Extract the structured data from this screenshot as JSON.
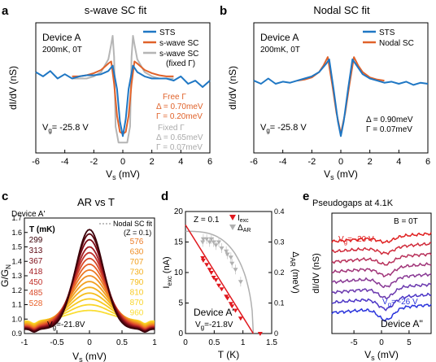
{
  "chart_data": [
    {
      "panel": "a",
      "type": "line",
      "title": "s-wave SC fit",
      "xlabel": "V",
      "xlabel_sub": "s",
      "xlabel_unit": "(mV)",
      "ylabel": "dI/dV (nS)",
      "xlim": [
        -6,
        6
      ],
      "xticks": [
        "-6",
        "-4",
        "-2",
        "0",
        "2",
        "4",
        "6"
      ],
      "device": "Device A",
      "conditions": "200mK, 0T",
      "gate": "V",
      "gate_sub": "g",
      "gate_value": "= -25.8 V",
      "legend": [
        "STS",
        "s-wave SC",
        "s-wave SC",
        "(fixed Γ)"
      ],
      "annotations": {
        "free": [
          "Free Γ",
          "Δ = 0.70meV",
          "Γ = 0.20meV"
        ],
        "fixed": [
          "Fixed Γ",
          "Δ = 0.65meV",
          "Γ = 0.07meV"
        ]
      },
      "series": [
        {
          "name": "STS",
          "color": "#1f77c4",
          "x": [
            -6,
            -5.5,
            -5,
            -4.5,
            -4,
            -3.5,
            -3,
            -2.5,
            -2,
            -1.5,
            -1,
            -0.7,
            -0.4,
            -0.2,
            0,
            0.2,
            0.4,
            0.7,
            1,
            1.5,
            2,
            2.5,
            3,
            3.5,
            4,
            4.5,
            5,
            5.5,
            6
          ],
          "y": [
            0.66,
            0.62,
            0.67,
            0.6,
            0.64,
            0.6,
            0.62,
            0.63,
            0.63,
            0.64,
            0.67,
            0.72,
            0.5,
            0.2,
            0.06,
            0.22,
            0.5,
            0.72,
            0.66,
            0.62,
            0.6,
            0.6,
            0.6,
            0.58,
            0.62,
            0.55,
            0.58,
            0.52,
            0.58
          ]
        },
        {
          "name": "s-wave SC",
          "color": "#e0622a",
          "x": [
            -3.5,
            -3,
            -2.5,
            -2,
            -1.5,
            -1,
            -0.8,
            -0.6,
            -0.4,
            -0.2,
            0,
            0.2,
            0.4,
            0.6,
            0.8,
            1,
            1.5,
            2,
            2.5,
            3,
            3.5
          ],
          "y": [
            0.62,
            0.62,
            0.63,
            0.65,
            0.68,
            0.74,
            0.76,
            0.55,
            0.25,
            0.1,
            0.08,
            0.1,
            0.25,
            0.55,
            0.76,
            0.74,
            0.68,
            0.65,
            0.63,
            0.62,
            0.62
          ]
        },
        {
          "name": "s-wave SC (fixed Γ)",
          "color": "#b5b5b5",
          "x": [
            -3.5,
            -3,
            -2.5,
            -2,
            -1.5,
            -1,
            -0.8,
            -0.7,
            -0.6,
            -0.5,
            -0.3,
            0,
            0.3,
            0.5,
            0.6,
            0.7,
            0.8,
            1,
            1.5,
            2,
            2.5,
            3,
            3.5
          ],
          "y": [
            0.6,
            0.6,
            0.6,
            0.62,
            0.66,
            0.78,
            0.92,
            1.0,
            0.8,
            0.15,
            0.0,
            0.0,
            0.0,
            0.15,
            0.8,
            1.0,
            0.92,
            0.78,
            0.66,
            0.62,
            0.6,
            0.6,
            0.6
          ]
        }
      ]
    },
    {
      "panel": "b",
      "type": "line",
      "title": "Nodal SC fit",
      "xlabel": "V",
      "xlabel_sub": "s",
      "xlabel_unit": "(mV)",
      "ylabel": "dI/dV (nS)",
      "xlim": [
        -6,
        6
      ],
      "xticks": [
        "-6",
        "-4",
        "-2",
        "0",
        "2",
        "4",
        "6"
      ],
      "device": "Device A",
      "conditions": "200mK, 0T",
      "gate": "V",
      "gate_sub": "g",
      "gate_value": "= -25.8 V",
      "legend": [
        "STS",
        "Nodal SC"
      ],
      "annotations": {
        "params": [
          "Δ = 0.90meV",
          "Γ = 0.07meV"
        ]
      },
      "series": [
        {
          "name": "STS",
          "color": "#1f77c4",
          "x": [
            -6,
            -5.5,
            -5,
            -4.5,
            -4,
            -3.5,
            -3,
            -2.5,
            -2,
            -1.5,
            -1,
            -0.8,
            -0.5,
            -0.2,
            0,
            0.2,
            0.5,
            0.8,
            1,
            1.5,
            2,
            2.5,
            3,
            3.5,
            4,
            4.5,
            5,
            5.5,
            6
          ],
          "y": [
            0.58,
            0.55,
            0.6,
            0.55,
            0.57,
            0.56,
            0.58,
            0.6,
            0.62,
            0.66,
            0.74,
            0.78,
            0.5,
            0.2,
            0.06,
            0.2,
            0.5,
            0.78,
            0.74,
            0.64,
            0.6,
            0.58,
            0.56,
            0.57,
            0.55,
            0.57,
            0.54,
            0.56,
            0.55
          ]
        },
        {
          "name": "Nodal SC",
          "color": "#e0622a",
          "x": [
            -3,
            -2.5,
            -2,
            -1.5,
            -1.2,
            -0.9,
            -0.6,
            -0.3,
            0,
            0.3,
            0.6,
            0.9,
            1.2,
            1.5,
            2,
            2.5,
            3
          ],
          "y": [
            0.58,
            0.59,
            0.61,
            0.66,
            0.72,
            0.8,
            0.55,
            0.28,
            0.08,
            0.28,
            0.55,
            0.8,
            0.72,
            0.66,
            0.61,
            0.59,
            0.58
          ]
        }
      ]
    },
    {
      "panel": "c",
      "type": "line",
      "title": "AR vs T",
      "xlabel": "V",
      "xlabel_sub": "s",
      "xlabel_unit": "(mV)",
      "ylabel": "G/G",
      "ylabel_sub": "N",
      "xlim": [
        -1,
        1
      ],
      "ylim": [
        0.9,
        1.7
      ],
      "xticks": [
        "-1",
        "-0.5",
        "0",
        "0.5",
        "1"
      ],
      "yticks": [
        "0.9",
        "1.0",
        "1.1",
        "1.2",
        "1.3",
        "1.4",
        "1.5",
        "1.6",
        "1.7"
      ],
      "device": "Device A'",
      "legend_fit": "Nodal SC fit",
      "z_param": "(Z = 0.1)",
      "temp_header": "T (mK)",
      "temps_left": [
        "299",
        "313",
        "367",
        "418",
        "450",
        "485",
        "528"
      ],
      "temps_right": [
        "576",
        "630",
        "707",
        "730",
        "790",
        "810",
        "870",
        "960"
      ],
      "temp_colors": [
        "#3a0008",
        "#5a0510",
        "#7e0d18",
        "#a31c22",
        "#c2302a",
        "#d94a2a",
        "#e86028",
        "#ec7a24",
        "#ef8e24",
        "#f2a020",
        "#f4b01e",
        "#f6be1e",
        "#f8ca22",
        "#f9d52a",
        "#fade36"
      ],
      "peak_values": [
        1.62,
        1.59,
        1.55,
        1.5,
        1.46,
        1.42,
        1.38,
        1.34,
        1.3,
        1.26,
        1.22,
        1.18,
        1.14,
        1.1,
        1.06
      ],
      "gate": "V",
      "gate_sub": "g",
      "gate_value": "=-21.8V"
    },
    {
      "panel": "d",
      "type": "scatter",
      "xlabel": "T (K)",
      "ylabel": "I",
      "ylabel_sub": "exc",
      "ylabel_unit": "(nA)",
      "y2label": "Δ",
      "y2label_sub": "AR",
      "y2label_unit": "(meV)",
      "xlim": [
        0,
        1.5
      ],
      "ylim": [
        0,
        20
      ],
      "y2lim": [
        0,
        0.4
      ],
      "xticks": [
        "0",
        "0.5",
        "1",
        "1.5"
      ],
      "yticks": [
        "0",
        "5",
        "10",
        "15",
        "20"
      ],
      "y2ticks": [
        "0",
        "0.1",
        "0.2",
        "0.3",
        "0.4"
      ],
      "z_label": "Z = 0.1",
      "device": "Device A'",
      "gate": "V",
      "gate_sub": "g",
      "gate_value": "=-21.8V",
      "legend": [
        "I",
        "Δ"
      ],
      "legend_subs": [
        "exc",
        "AR"
      ],
      "series": [
        {
          "name": "Iexc",
          "color": "#e0181e",
          "x": [
            0.3,
            0.31,
            0.37,
            0.42,
            0.45,
            0.49,
            0.53,
            0.58,
            0.63,
            0.71,
            0.73,
            0.79,
            0.81,
            0.87,
            0.96,
            1.3
          ],
          "y": [
            12.4,
            12.0,
            11.3,
            10.5,
            10.0,
            9.2,
            8.8,
            7.9,
            7.3,
            6.1,
            5.8,
            4.9,
            4.5,
            3.8,
            2.5,
            0.0
          ]
        },
        {
          "name": "ΔAR",
          "color": "#b0b0b0",
          "x": [
            0.3,
            0.31,
            0.37,
            0.42,
            0.45,
            0.49,
            0.53,
            0.58,
            0.63,
            0.71,
            0.73,
            0.79,
            0.81,
            0.87,
            0.96
          ],
          "y": [
            0.3,
            0.31,
            0.31,
            0.3,
            0.31,
            0.3,
            0.29,
            0.3,
            0.28,
            0.27,
            0.26,
            0.25,
            0.23,
            0.21,
            0.17
          ]
        }
      ]
    },
    {
      "panel": "e",
      "type": "line",
      "title": "Pseudogaps at 4.1K",
      "xlabel": "V",
      "xlabel_sub": "s",
      "xlabel_unit": "(mV)",
      "ylabel": "dI/dV (nS)",
      "xlim": [
        -9,
        9
      ],
      "xticks": [
        "-5",
        "0",
        "5"
      ],
      "field": "B = 0T",
      "gate_top": "V",
      "gate_top_sub": "g",
      "gate_top_value": "= -20 V",
      "gate_bottom": "V",
      "gate_bottom_sub": "g",
      "gate_bottom_value": "= -26 V",
      "device": "Device A''",
      "colors": [
        "#e02020",
        "#d02a3a",
        "#b8305a",
        "#a03478",
        "#883894",
        "#6a38ae",
        "#4c36c6",
        "#2a34dc"
      ]
    }
  ],
  "panel_labels": [
    "a",
    "b",
    "c",
    "d",
    "e"
  ]
}
